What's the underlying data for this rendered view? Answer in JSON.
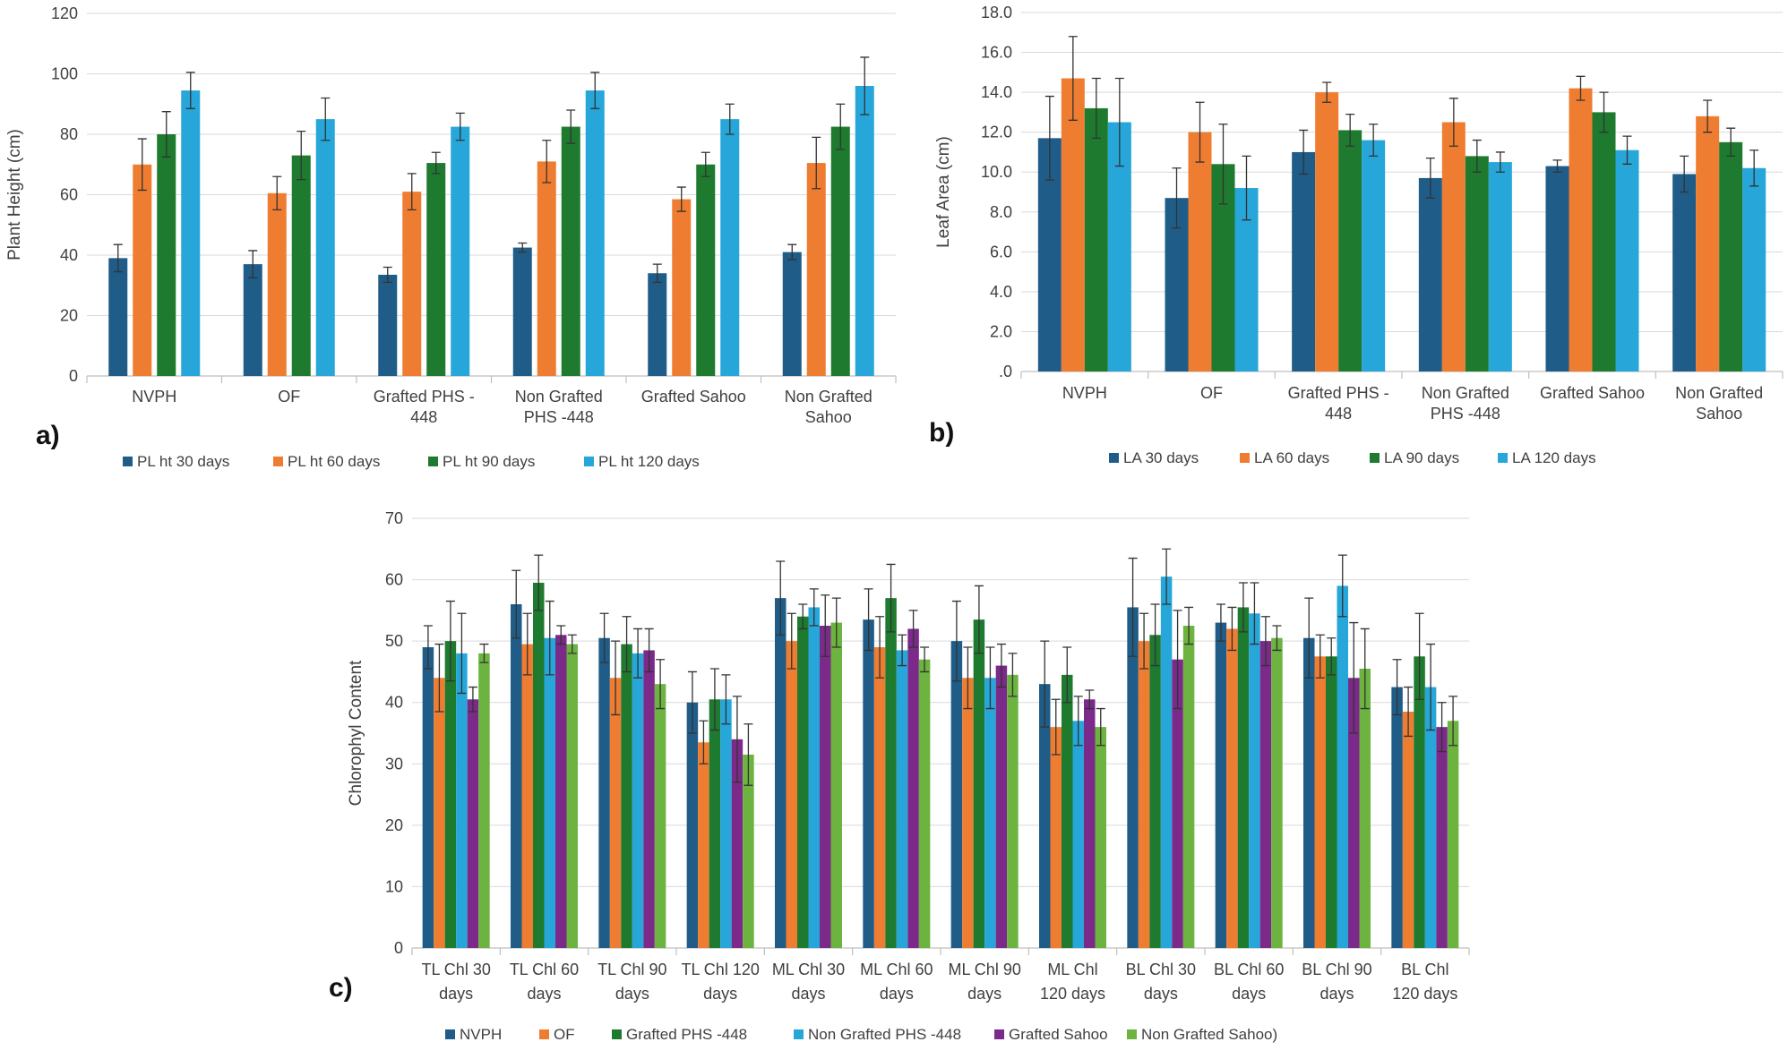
{
  "chart_data": [
    {
      "id": "a",
      "panel_label": "a)",
      "type": "bar",
      "ylabel": "Plant Height (cm)",
      "ylim": [
        0,
        120
      ],
      "yticks": [
        "0",
        "20",
        "40",
        "60",
        "80",
        "100",
        "120"
      ],
      "categories": [
        [
          "NVPH"
        ],
        [
          "OF"
        ],
        [
          "Grafted PHS -",
          "448"
        ],
        [
          "Non Grafted",
          "PHS -448"
        ],
        [
          "Grafted Sahoo"
        ],
        [
          "Non Grafted",
          "Sahoo"
        ]
      ],
      "series": [
        {
          "name": "PL ht 30 days",
          "color": "#1f5c87",
          "values": [
            39,
            37,
            33.5,
            42.5,
            34,
            41
          ],
          "errors": [
            4.5,
            4.5,
            2.5,
            1.5,
            3,
            2.5
          ]
        },
        {
          "name": "PL ht 60 days",
          "color": "#ef7d31",
          "values": [
            70,
            60.5,
            61,
            71,
            58.5,
            70.5
          ],
          "errors": [
            8.5,
            5.5,
            6,
            7,
            4,
            8.5
          ]
        },
        {
          "name": "PL ht 90 days",
          "color": "#1e7a2e",
          "values": [
            80,
            73,
            70.5,
            82.5,
            70,
            82.5
          ],
          "errors": [
            7.5,
            8,
            3.5,
            5.5,
            4,
            7.5
          ]
        },
        {
          "name": "PL ht 120 days",
          "color": "#26a6d9",
          "values": [
            94.5,
            85,
            82.5,
            94.5,
            85,
            96
          ],
          "errors": [
            6,
            7,
            4.5,
            6,
            5,
            9.5
          ]
        }
      ]
    },
    {
      "id": "b",
      "panel_label": "b)",
      "type": "bar",
      "ylabel": "Leaf Area (cm)",
      "ylim": [
        0,
        18
      ],
      "yticks": [
        ".0",
        "2.0",
        "4.0",
        "6.0",
        "8.0",
        "10.0",
        "12.0",
        "14.0",
        "16.0",
        "18.0"
      ],
      "categories": [
        [
          "NVPH"
        ],
        [
          "OF"
        ],
        [
          "Grafted PHS -",
          "448"
        ],
        [
          "Non Grafted",
          "PHS -448"
        ],
        [
          "Grafted Sahoo"
        ],
        [
          "Non Grafted",
          "Sahoo"
        ]
      ],
      "series": [
        {
          "name": "LA 30 days",
          "color": "#1f5c87",
          "values": [
            11.7,
            8.7,
            11,
            9.7,
            10.3,
            9.9
          ],
          "errors": [
            2.1,
            1.5,
            1.1,
            1,
            0.3,
            0.9
          ]
        },
        {
          "name": "LA 60 days",
          "color": "#ef7d31",
          "values": [
            14.7,
            12,
            14,
            12.5,
            14.2,
            12.8
          ],
          "errors": [
            2.1,
            1.5,
            0.5,
            1.2,
            0.6,
            0.8
          ]
        },
        {
          "name": "LA 90 days",
          "color": "#1e7a2e",
          "values": [
            13.2,
            10.4,
            12.1,
            10.8,
            13,
            11.5
          ],
          "errors": [
            1.5,
            2,
            0.8,
            0.8,
            1,
            0.7
          ]
        },
        {
          "name": "LA 120 days",
          "color": "#26a6d9",
          "values": [
            12.5,
            9.2,
            11.6,
            10.5,
            11.1,
            10.2
          ],
          "errors": [
            2.2,
            1.6,
            0.8,
            0.5,
            0.7,
            0.9
          ]
        }
      ]
    },
    {
      "id": "c",
      "panel_label": "c)",
      "type": "bar",
      "ylabel": "Chlorophyl Content",
      "ylim": [
        0,
        70
      ],
      "yticks": [
        "0",
        "10",
        "20",
        "30",
        "40",
        "50",
        "60",
        "70"
      ],
      "categories": [
        [
          "TL Chl 30",
          "days"
        ],
        [
          "TL Chl 60",
          "days"
        ],
        [
          "TL Chl 90",
          "days"
        ],
        [
          "TL Chl 120",
          "days"
        ],
        [
          "ML Chl 30",
          "days"
        ],
        [
          "ML Chl 60",
          "days"
        ],
        [
          "ML Chl 90",
          "days"
        ],
        [
          "ML Chl",
          "120 days"
        ],
        [
          "BL Chl 30",
          "days"
        ],
        [
          "BL Chl 60",
          "days"
        ],
        [
          "BL Chl 90",
          "days"
        ],
        [
          "BL Chl",
          "120 days"
        ]
      ],
      "series": [
        {
          "name": "NVPH",
          "color": "#1f5c87",
          "values": [
            49,
            56,
            50.5,
            40,
            57,
            53.5,
            50,
            43,
            55.5,
            53,
            50.5,
            42.5
          ],
          "errors": [
            3.5,
            5.5,
            4,
            5,
            6,
            5,
            6.5,
            7,
            8,
            3,
            6.5,
            4.5
          ]
        },
        {
          "name": "OF",
          "color": "#ef7d31",
          "values": [
            44,
            49.5,
            44,
            33.5,
            50,
            49,
            44,
            36,
            50,
            52,
            47.5,
            38.5
          ],
          "errors": [
            5.5,
            5,
            6,
            3.5,
            4.5,
            5,
            5,
            4.5,
            4.5,
            3.5,
            3.5,
            4
          ]
        },
        {
          "name": "Grafted PHS -448",
          "color": "#1e7a2e",
          "values": [
            50,
            59.5,
            49.5,
            40.5,
            54,
            57,
            53.5,
            44.5,
            51,
            55.5,
            47.5,
            47.5
          ],
          "errors": [
            6.5,
            4.5,
            4.5,
            5,
            2,
            5.5,
            5.5,
            4.5,
            5,
            4,
            3,
            7
          ]
        },
        {
          "name": "Non Grafted PHS -448",
          "color": "#26a6d9",
          "values": [
            48,
            50.5,
            48,
            40.5,
            55.5,
            48.5,
            44,
            37,
            60.5,
            54.5,
            59,
            42.5
          ],
          "errors": [
            6.5,
            6,
            4,
            4,
            3,
            2.5,
            5,
            4,
            4.5,
            5,
            5,
            7
          ]
        },
        {
          "name": "Grafted Sahoo",
          "color": "#7b2a8a",
          "values": [
            40.5,
            51,
            48.5,
            34,
            52.5,
            52,
            46,
            40.5,
            47,
            50,
            44,
            36
          ],
          "errors": [
            2,
            1.5,
            3.5,
            7,
            5,
            3,
            3.5,
            1.5,
            8,
            4,
            9,
            4
          ]
        },
        {
          "name": "Non Grafted Sahoo)",
          "color": "#6cb33f",
          "values": [
            48,
            49.5,
            43,
            31.5,
            53,
            47,
            44.5,
            36,
            52.5,
            50.5,
            45.5,
            37
          ],
          "errors": [
            1.5,
            1.5,
            4,
            5,
            4,
            2,
            3.5,
            3,
            3,
            2,
            6.5,
            4
          ]
        }
      ]
    }
  ]
}
